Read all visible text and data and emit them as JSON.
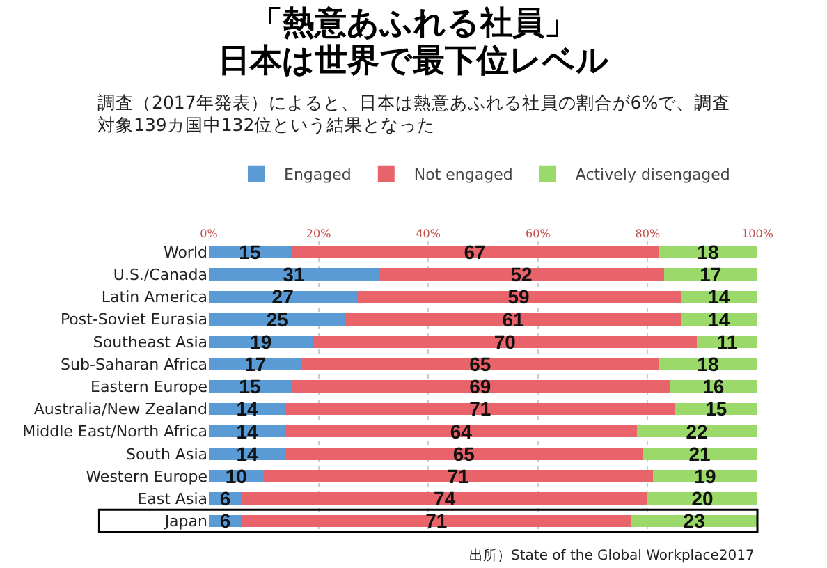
{
  "chart_data": {
    "type": "bar",
    "orientation": "horizontal",
    "stacked": true,
    "title": "「熱意あふれる社員」日本は世界で最下位レベル",
    "subtitle": "調査（2017年発表）によると、日本は熱意あふれる社員の割合が6%で、調査対象139カ国中132位という結果となった",
    "categories": [
      "World",
      "U.S./Canada",
      "Latin America",
      "Post-Soviet Eurasia",
      "Southeast Asia",
      "Sub-Saharan Africa",
      "Eastern Europe",
      "Australia/New Zealand",
      "Middle East/North Africa",
      "South Asia",
      "Western Europe",
      "East Asia",
      "Japan"
    ],
    "series": [
      {
        "name": "Engaged",
        "color": "#5b9bd5",
        "values": [
          15,
          31,
          27,
          25,
          19,
          17,
          15,
          14,
          14,
          14,
          10,
          6,
          6
        ]
      },
      {
        "name": "Not engaged",
        "color": "#e8636a",
        "values": [
          67,
          52,
          59,
          61,
          70,
          65,
          69,
          71,
          64,
          65,
          71,
          74,
          71
        ]
      },
      {
        "name": "Actively disengaged",
        "color": "#9bd96a",
        "values": [
          18,
          17,
          14,
          14,
          11,
          18,
          16,
          15,
          22,
          21,
          19,
          20,
          23
        ]
      }
    ],
    "xlim": [
      0,
      100
    ],
    "xticks": [
      {
        "value": 0,
        "label": "0%"
      },
      {
        "value": 20,
        "label": "20%"
      },
      {
        "value": 40,
        "label": "40%"
      },
      {
        "value": 60,
        "label": "60%"
      },
      {
        "value": 80,
        "label": "80%"
      },
      {
        "value": 100,
        "label": "100%"
      }
    ],
    "grid": "x",
    "legend": "top",
    "data_labels": true,
    "annotations": [
      "出所）State of the Global Workplace2017"
    ]
  }
}
